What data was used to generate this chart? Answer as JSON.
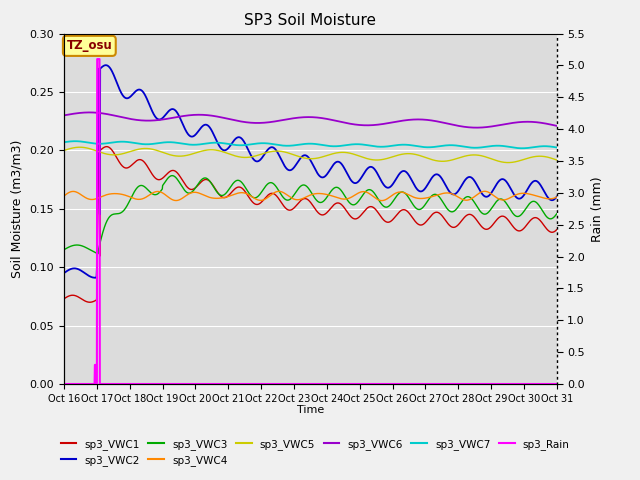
{
  "title": "SP3 Soil Moisture",
  "xlabel": "Time",
  "ylabel_left": "Soil Moisture (m3/m3)",
  "ylabel_right": "Rain (mm)",
  "x_ticks": [
    "Oct 16",
    "Oct 17",
    "Oct 18",
    "Oct 19",
    "Oct 20",
    "Oct 21",
    "Oct 22",
    "Oct 23",
    "Oct 24",
    "Oct 25",
    "Oct 26",
    "Oct 27",
    "Oct 28",
    "Oct 29",
    "Oct 30",
    "Oct 31"
  ],
  "ylim_left": [
    0.0,
    0.3
  ],
  "ylim_right": [
    0.0,
    5.5
  ],
  "plot_bg_color": "#dcdcdc",
  "fig_bg_color": "#f0f0f0",
  "annotation_text": "TZ_osu",
  "annotation_box_color": "#ffff99",
  "annotation_border_color": "#cc8800",
  "series": {
    "sp3_VWC1": {
      "color": "#cc0000",
      "label": "sp3_VWC1"
    },
    "sp3_VWC2": {
      "color": "#0000cc",
      "label": "sp3_VWC2"
    },
    "sp3_VWC3": {
      "color": "#00aa00",
      "label": "sp3_VWC3"
    },
    "sp3_VWC4": {
      "color": "#ff8800",
      "label": "sp3_VWC4"
    },
    "sp3_VWC5": {
      "color": "#cccc00",
      "label": "sp3_VWC5"
    },
    "sp3_VWC6": {
      "color": "#9900cc",
      "label": "sp3_VWC6"
    },
    "sp3_VWC7": {
      "color": "#00cccc",
      "label": "sp3_VWC7"
    },
    "sp3_Rain": {
      "color": "#ff00ff",
      "label": "sp3_Rain"
    }
  }
}
